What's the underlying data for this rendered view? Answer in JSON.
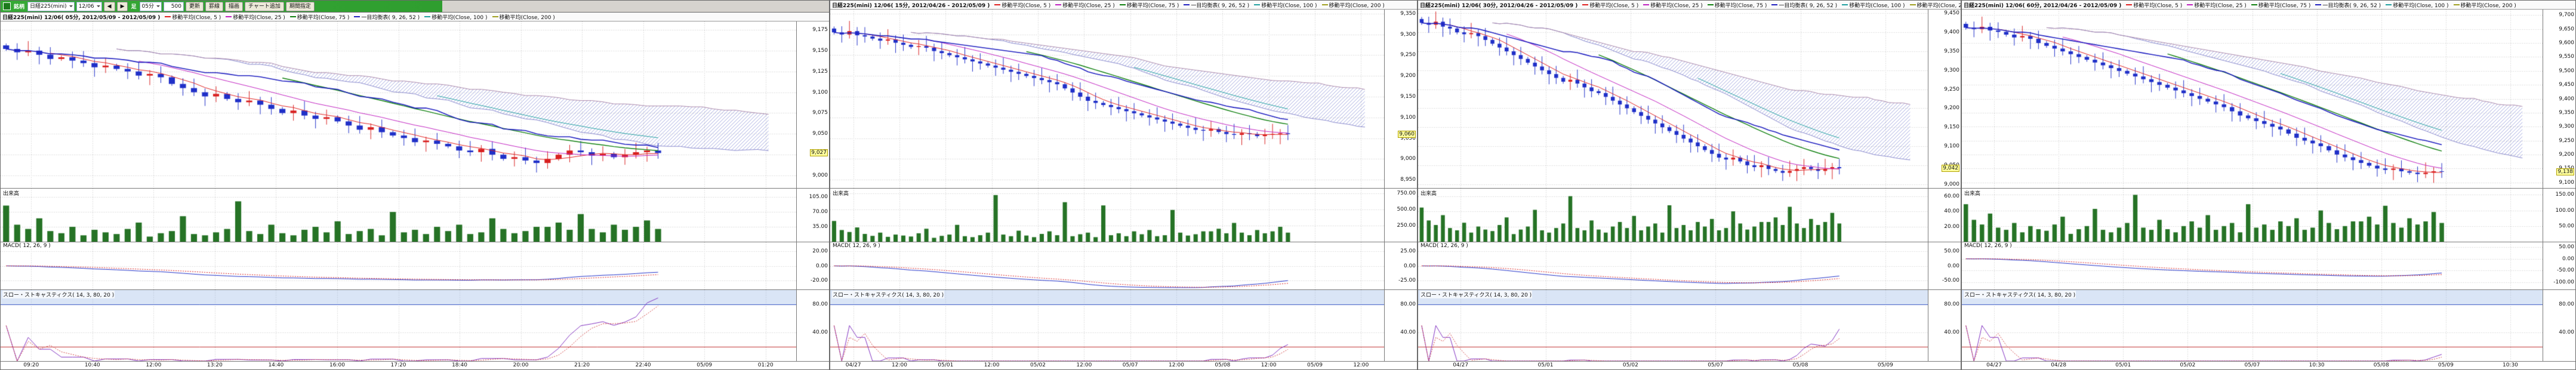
{
  "toolbar": {
    "brand_label": "銘柄",
    "symbol_value": "日経225(mini)",
    "contract_value": "12/06",
    "prev_label": "◀",
    "next_label": "▶",
    "period_label": "足",
    "period_value": "05分",
    "count_value": "500",
    "buttons": [
      "更新",
      "罫線",
      "描画",
      "チャート追加",
      "期間指定"
    ]
  },
  "panels": [
    {
      "title": "日経225(mini) 12/06( 05分, 2012/05/09 - 2012/05/09 )",
      "volume_title": "出来高",
      "macd_title": "MACD( 12, 26, 9 )",
      "stoch_title": "スロー・ストキャスティクス( 14, 3, 80, 20 )",
      "indicators": [
        {
          "label": "移動平均(Close, 5 )",
          "color": "#e02020"
        },
        {
          "label": "移動平均(Close, 25 )",
          "color": "#c020c0"
        },
        {
          "label": "移動平均(Close, 75 )",
          "color": "#108010"
        },
        {
          "label": "一目均衡表( 9, 26, 52 )",
          "color": "#2020c0"
        },
        {
          "label": "移動平均(Close, 100 )",
          "color": "#20a0a0"
        },
        {
          "label": "移動平均(Close, 200 )",
          "color": "#a0a020"
        }
      ]
    },
    {
      "title": "日経225(mini) 12/06( 15分, 2012/04/26 - 2012/05/09 )",
      "volume_title": "出来高",
      "macd_title": "MACD( 12, 26, 9 )",
      "stoch_title": "スロー・ストキャスティクス( 14, 3, 80, 20 )",
      "indicators": [
        {
          "label": "移動平均(Close, 5 )",
          "color": "#e02020"
        },
        {
          "label": "移動平均(Close, 25 )",
          "color": "#c020c0"
        },
        {
          "label": "移動平均(Close, 75 )",
          "color": "#108010"
        },
        {
          "label": "一目均衡表( 9, 26, 52 )",
          "color": "#2020c0"
        },
        {
          "label": "移動平均(Close, 100 )",
          "color": "#20a0a0"
        },
        {
          "label": "移動平均(Close, 200 )",
          "color": "#a0a020"
        }
      ]
    },
    {
      "title": "日経225(mini) 12/06( 30分, 2012/04/26 - 2012/05/09 )",
      "volume_title": "出来高",
      "macd_title": "MACD( 12, 26, 9 )",
      "stoch_title": "スロー・ストキャスティクス( 14, 3, 80, 20 )",
      "indicators": [
        {
          "label": "移動平均(Close, 5 )",
          "color": "#e02020"
        },
        {
          "label": "移動平均(Close, 25 )",
          "color": "#c020c0"
        },
        {
          "label": "移動平均(Close, 75 )",
          "color": "#108010"
        },
        {
          "label": "一目均衡表( 9, 26, 52 )",
          "color": "#2020c0"
        },
        {
          "label": "移動平均(Close, 100 )",
          "color": "#20a0a0"
        },
        {
          "label": "移動平均(Close, 200 )",
          "color": "#a0a020"
        }
      ]
    },
    {
      "title": "日経225(mini) 12/06( 60分, 2012/04/26 - 2012/05/09 )",
      "volume_title": "出来高",
      "macd_title": "MACD( 12, 26, 9 )",
      "stoch_title": "スロー・ストキャスティクス( 14, 3, 80, 20 )",
      "indicators": [
        {
          "label": "移動平均(Close, 5 )",
          "color": "#e02020"
        },
        {
          "label": "移動平均(Close, 25 )",
          "color": "#c020c0"
        },
        {
          "label": "移動平均(Close, 75 )",
          "color": "#108010"
        },
        {
          "label": "一目均衡表( 9, 26, 52 )",
          "color": "#2020c0"
        },
        {
          "label": "移動平均(Close, 100 )",
          "color": "#20a0a0"
        },
        {
          "label": "移動平均(Close, 200 )",
          "color": "#a0a020"
        }
      ]
    }
  ],
  "chart_data": [
    {
      "type": "candlestick",
      "interval": "05分",
      "date_range": "2012/05/09 - 2012/05/09",
      "closes": [
        9152,
        9148,
        9150,
        9145,
        9140,
        9142,
        9138,
        9135,
        9130,
        9132,
        9128,
        9125,
        9120,
        9122,
        9118,
        9110,
        9105,
        9100,
        9095,
        9098,
        9092,
        9088,
        9090,
        9085,
        9080,
        9075,
        9078,
        9072,
        9068,
        9070,
        9065,
        9060,
        9055,
        9058,
        9052,
        9048,
        9045,
        9040,
        9042,
        9038,
        9035,
        9030,
        9028,
        9032,
        9025,
        9020,
        9022,
        9018,
        9015,
        9020,
        9025,
        9030,
        9028,
        9024,
        9026,
        9022,
        9025,
        9028,
        9030,
        9027
      ],
      "volumes": [
        85,
        40,
        30,
        55,
        25,
        20,
        35,
        15,
        28,
        22,
        18,
        30,
        45,
        12,
        20,
        25,
        60,
        18,
        15,
        22,
        30,
        95,
        25,
        18,
        40,
        20,
        15,
        28,
        35,
        22,
        48,
        18,
        25,
        30,
        15,
        70,
        22,
        28,
        18,
        35,
        25,
        40,
        18,
        22,
        55,
        30,
        20,
        25,
        35,
        35,
        45,
        28,
        65,
        30,
        22,
        40,
        28,
        35,
        50,
        30
      ],
      "price_min": 8985,
      "price_max": 9185,
      "price_tick_values": [
        9175,
        9150,
        9125,
        9100,
        9075,
        9050,
        9025,
        9000
      ],
      "price_tick_labels": [
        "9,175",
        "9,150",
        "9,125",
        "9,100",
        "9,075",
        "9,050",
        "9,025",
        "9,000"
      ],
      "vol_max": 125,
      "vol_tick_values": [
        105,
        70,
        35
      ],
      "vol_tick_labels": [
        "105.00",
        "70.00",
        "35.00"
      ],
      "macd_range": [
        -32,
        32
      ],
      "macd_tick_values": [
        20,
        0,
        -20
      ],
      "macd_tick_labels": [
        "20.00",
        "0.00",
        "-20.00"
      ],
      "stoch_tick_values": [
        80,
        40
      ],
      "stoch_tick_labels": [
        "80.00",
        "40.00"
      ],
      "x_ticks": [
        "09:20",
        "10:40",
        "12:00",
        "13:20",
        "14:40",
        "16:00",
        "17:20",
        "18:40",
        "20:00",
        "21:20",
        "22:40",
        "05/09",
        "01:20"
      ],
      "last_close_label": "9,027"
    },
    {
      "type": "candlestick",
      "interval": "15分",
      "date_range": "2012/04/26 - 2012/05/09",
      "closes": [
        9305,
        9300,
        9308,
        9298,
        9295,
        9290,
        9285,
        9288,
        9280,
        9275,
        9270,
        9272,
        9268,
        9260,
        9255,
        9250,
        9245,
        9240,
        9235,
        9230,
        9225,
        9220,
        9215,
        9210,
        9205,
        9200,
        9195,
        9190,
        9185,
        9180,
        9170,
        9160,
        9150,
        9140,
        9135,
        9130,
        9125,
        9120,
        9115,
        9110,
        9105,
        9100,
        9095,
        9090,
        9085,
        9080,
        9075,
        9070,
        9068,
        9072,
        9065,
        9060,
        9058,
        9062,
        9060,
        9055,
        9058,
        9060,
        9062,
        9060
      ],
      "volumes": [
        320,
        180,
        150,
        220,
        120,
        90,
        140,
        75,
        110,
        95,
        80,
        130,
        200,
        60,
        90,
        110,
        260,
        85,
        70,
        100,
        140,
        720,
        110,
        85,
        170,
        95,
        70,
        120,
        160,
        100,
        610,
        85,
        115,
        140,
        70,
        560,
        100,
        130,
        85,
        160,
        115,
        180,
        85,
        100,
        490,
        140,
        95,
        115,
        160,
        160,
        200,
        130,
        290,
        140,
        100,
        180,
        130,
        160,
        230,
        140
      ],
      "price_min": 8930,
      "price_max": 9360,
      "price_tick_values": [
        9350,
        9300,
        9250,
        9200,
        9150,
        9100,
        9050,
        9000,
        8950
      ],
      "price_tick_labels": [
        "9,350",
        "9,300",
        "9,250",
        "9,200",
        "9,150",
        "9,100",
        "9,050",
        "9,000",
        "8,950"
      ],
      "vol_max": 820,
      "vol_tick_values": [
        750,
        500,
        250
      ],
      "vol_tick_labels": [
        "750.00",
        "500.00",
        "250.00"
      ],
      "macd_range": [
        -40,
        40
      ],
      "macd_tick_values": [
        25,
        0,
        -25
      ],
      "macd_tick_labels": [
        "25.00",
        "0.00",
        "-25.00"
      ],
      "stoch_tick_values": [
        80,
        40
      ],
      "stoch_tick_labels": [
        "80.00",
        "40.00"
      ],
      "x_ticks": [
        "04/27",
        "12:00",
        "05/01",
        "12:00",
        "05/02",
        "12:00",
        "05/07",
        "12:00",
        "05/08",
        "12:00",
        "05/09",
        "12:00"
      ],
      "last_close_label": "9,060"
    },
    {
      "type": "candlestick",
      "interval": "30分",
      "date_range": "2012/04/26 - 2012/05/09",
      "closes": [
        9425,
        9420,
        9428,
        9415,
        9410,
        9400,
        9395,
        9398,
        9390,
        9380,
        9370,
        9360,
        9350,
        9340,
        9330,
        9320,
        9310,
        9300,
        9290,
        9280,
        9270,
        9275,
        9265,
        9255,
        9245,
        9240,
        9230,
        9220,
        9210,
        9200,
        9190,
        9180,
        9170,
        9160,
        9150,
        9140,
        9130,
        9120,
        9110,
        9100,
        9090,
        9080,
        9070,
        9065,
        9070,
        9060,
        9050,
        9045,
        9050,
        9040,
        9035,
        9030,
        9035,
        9040,
        9045,
        9040,
        9035,
        9040,
        9045,
        9042
      ],
      "volumes": [
        45,
        28,
        22,
        35,
        18,
        15,
        25,
        12,
        20,
        16,
        14,
        22,
        32,
        10,
        16,
        20,
        42,
        15,
        12,
        18,
        24,
        60,
        18,
        15,
        28,
        16,
        12,
        20,
        26,
        18,
        34,
        15,
        20,
        24,
        12,
        48,
        18,
        22,
        15,
        26,
        20,
        30,
        15,
        18,
        40,
        24,
        16,
        20,
        26,
        26,
        32,
        22,
        46,
        24,
        18,
        30,
        22,
        26,
        38,
        24
      ],
      "price_min": 8990,
      "price_max": 9460,
      "price_tick_values": [
        9450,
        9400,
        9350,
        9300,
        9250,
        9200,
        9150,
        9100,
        9050,
        9000
      ],
      "price_tick_labels": [
        "9,450",
        "9,400",
        "9,350",
        "9,300",
        "9,250",
        "9,200",
        "9,150",
        "9,100",
        "9,050",
        "9,000"
      ],
      "vol_max": 70,
      "vol_tick_values": [
        60,
        40,
        20
      ],
      "vol_tick_labels": [
        "60.00",
        "40.00",
        "20.00"
      ],
      "macd_range": [
        -80,
        80
      ],
      "macd_tick_values": [
        50,
        0,
        -50
      ],
      "macd_tick_labels": [
        "50.00",
        "0.00",
        "-50.00"
      ],
      "stoch_tick_values": [
        80,
        40
      ],
      "stoch_tick_labels": [
        "80.00",
        "40.00"
      ],
      "x_ticks": [
        "04/27",
        "05/01",
        "05/02",
        "05/07",
        "05/08",
        "05/09"
      ],
      "last_close_label": "9,042"
    },
    {
      "type": "candlestick",
      "interval": "60分",
      "date_range": "2012/04/26 - 2012/05/09",
      "closes": [
        9655,
        9650,
        9658,
        9645,
        9640,
        9630,
        9620,
        9625,
        9615,
        9600,
        9590,
        9580,
        9570,
        9560,
        9550,
        9540,
        9530,
        9520,
        9510,
        9500,
        9490,
        9480,
        9470,
        9460,
        9450,
        9440,
        9430,
        9420,
        9410,
        9400,
        9390,
        9380,
        9370,
        9355,
        9340,
        9330,
        9320,
        9310,
        9300,
        9290,
        9275,
        9260,
        9250,
        9240,
        9230,
        9215,
        9200,
        9190,
        9180,
        9170,
        9160,
        9150,
        9145,
        9150,
        9140,
        9135,
        9130,
        9135,
        9140,
        9138
      ],
      "volumes": [
        120,
        70,
        55,
        90,
        45,
        38,
        60,
        30,
        50,
        40,
        35,
        55,
        80,
        25,
        40,
        50,
        105,
        38,
        30,
        45,
        60,
        150,
        45,
        38,
        70,
        40,
        30,
        50,
        65,
        45,
        85,
        38,
        50,
        60,
        30,
        120,
        45,
        55,
        38,
        65,
        50,
        75,
        38,
        45,
        100,
        60,
        40,
        50,
        65,
        65,
        80,
        55,
        115,
        60,
        45,
        75,
        55,
        65,
        95,
        60
      ],
      "price_min": 9080,
      "price_max": 9720,
      "price_tick_values": [
        9700,
        9650,
        9600,
        9550,
        9500,
        9450,
        9400,
        9350,
        9300,
        9250,
        9200,
        9150,
        9100
      ],
      "price_tick_labels": [
        "9,700",
        "9,650",
        "9,600",
        "9,550",
        "9,500",
        "9,450",
        "9,400",
        "9,350",
        "9,300",
        "9,250",
        "9,200",
        "9,150",
        "9,100"
      ],
      "vol_max": 170,
      "vol_tick_values": [
        150,
        100,
        50
      ],
      "vol_tick_labels": [
        "150.00",
        "100.00",
        "50.00"
      ],
      "macd_range": [
        -130,
        70
      ],
      "macd_tick_values": [
        50,
        0,
        -50,
        -100
      ],
      "macd_tick_labels": [
        "50.00",
        "0.00",
        "-50.00",
        "-100.00"
      ],
      "stoch_tick_values": [
        80,
        40
      ],
      "stoch_tick_labels": [
        "80.00",
        "40.00"
      ],
      "x_ticks": [
        "04/27",
        "04/28",
        "05/01",
        "05/02",
        "05/07",
        "10:30",
        "05/08",
        "05/09",
        "10:30"
      ],
      "last_close_label": "9,138"
    }
  ]
}
